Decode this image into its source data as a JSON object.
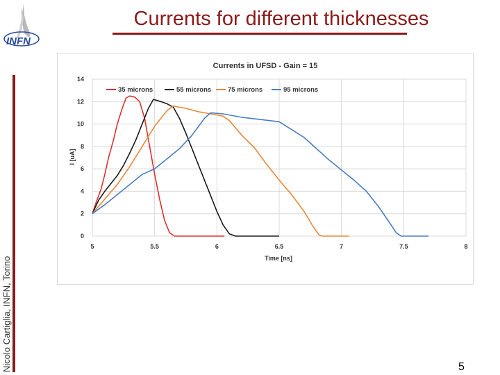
{
  "slide": {
    "title": "Currents for different thicknesses",
    "side_text": "Nicolo Cartiglia, INFN, Torino",
    "page_number": "5",
    "logo_text": "INFN",
    "accent_color": "#8b1a1a"
  },
  "chart_data": {
    "type": "line",
    "title": "Currents in UFSD - Gain = 15",
    "xlabel": "Time [ns]",
    "ylabel": "I [uA]",
    "xlim": [
      5,
      8
    ],
    "ylim": [
      0,
      14
    ],
    "xticks": [
      "5",
      "5.5",
      "6",
      "6.5",
      "7",
      "7.5",
      "8"
    ],
    "yticks": [
      "0",
      "2",
      "4",
      "6",
      "8",
      "10",
      "12",
      "14"
    ],
    "grid": true,
    "legend_position": "top",
    "series": [
      {
        "name": "35 microns",
        "color": "#e03030",
        "points": [
          [
            5.0,
            2.0
          ],
          [
            5.03,
            3.0
          ],
          [
            5.07,
            4.2
          ],
          [
            5.1,
            5.5
          ],
          [
            5.13,
            7.0
          ],
          [
            5.17,
            8.6
          ],
          [
            5.2,
            10.0
          ],
          [
            5.24,
            11.4
          ],
          [
            5.27,
            12.3
          ],
          [
            5.3,
            12.5
          ],
          [
            5.34,
            12.4
          ],
          [
            5.38,
            12.0
          ],
          [
            5.42,
            10.5
          ],
          [
            5.46,
            8.0
          ],
          [
            5.5,
            5.5
          ],
          [
            5.54,
            3.3
          ],
          [
            5.58,
            1.4
          ],
          [
            5.62,
            0.3
          ],
          [
            5.66,
            0.0
          ],
          [
            5.75,
            0.0
          ],
          [
            5.9,
            0.0
          ],
          [
            6.06,
            0.0
          ]
        ]
      },
      {
        "name": "55 microns",
        "color": "#1a1a1a",
        "points": [
          [
            5.0,
            2.0
          ],
          [
            5.05,
            3.2
          ],
          [
            5.1,
            4.0
          ],
          [
            5.15,
            4.7
          ],
          [
            5.2,
            5.4
          ],
          [
            5.25,
            6.3
          ],
          [
            5.3,
            7.4
          ],
          [
            5.35,
            8.6
          ],
          [
            5.4,
            10.0
          ],
          [
            5.45,
            11.4
          ],
          [
            5.49,
            12.2
          ],
          [
            5.55,
            12.0
          ],
          [
            5.6,
            11.8
          ],
          [
            5.65,
            11.5
          ],
          [
            5.7,
            10.5
          ],
          [
            5.75,
            9.2
          ],
          [
            5.8,
            7.8
          ],
          [
            5.85,
            6.4
          ],
          [
            5.9,
            5.0
          ],
          [
            5.95,
            3.6
          ],
          [
            6.0,
            2.2
          ],
          [
            6.05,
            1.0
          ],
          [
            6.1,
            0.2
          ],
          [
            6.15,
            0.0
          ],
          [
            6.3,
            0.0
          ],
          [
            6.5,
            0.0
          ]
        ]
      },
      {
        "name": "75 microns",
        "color": "#e8883a",
        "points": [
          [
            5.0,
            2.0
          ],
          [
            5.1,
            3.3
          ],
          [
            5.2,
            4.6
          ],
          [
            5.3,
            6.2
          ],
          [
            5.4,
            8.0
          ],
          [
            5.5,
            9.8
          ],
          [
            5.6,
            11.2
          ],
          [
            5.65,
            11.6
          ],
          [
            5.75,
            11.4
          ],
          [
            5.85,
            11.1
          ],
          [
            5.95,
            10.9
          ],
          [
            6.05,
            10.7
          ],
          [
            6.1,
            10.3
          ],
          [
            6.2,
            9.0
          ],
          [
            6.3,
            7.9
          ],
          [
            6.4,
            6.4
          ],
          [
            6.5,
            5.0
          ],
          [
            6.6,
            3.7
          ],
          [
            6.7,
            2.2
          ],
          [
            6.77,
            0.9
          ],
          [
            6.82,
            0.1
          ],
          [
            6.85,
            0.0
          ],
          [
            7.0,
            0.0
          ],
          [
            7.06,
            0.0
          ]
        ]
      },
      {
        "name": "95 microns",
        "color": "#4a7ec0",
        "points": [
          [
            5.0,
            2.0
          ],
          [
            5.1,
            2.8
          ],
          [
            5.2,
            3.7
          ],
          [
            5.3,
            4.6
          ],
          [
            5.4,
            5.5
          ],
          [
            5.5,
            6.0
          ],
          [
            5.6,
            6.9
          ],
          [
            5.7,
            7.8
          ],
          [
            5.8,
            9.0
          ],
          [
            5.9,
            10.5
          ],
          [
            5.95,
            11.0
          ],
          [
            6.05,
            10.9
          ],
          [
            6.2,
            10.6
          ],
          [
            6.35,
            10.4
          ],
          [
            6.5,
            10.2
          ],
          [
            6.6,
            9.5
          ],
          [
            6.7,
            8.8
          ],
          [
            6.8,
            7.8
          ],
          [
            6.9,
            6.8
          ],
          [
            7.0,
            5.9
          ],
          [
            7.1,
            5.0
          ],
          [
            7.2,
            4.0
          ],
          [
            7.3,
            2.6
          ],
          [
            7.38,
            1.3
          ],
          [
            7.44,
            0.3
          ],
          [
            7.48,
            0.0
          ],
          [
            7.6,
            0.0
          ],
          [
            7.7,
            0.0
          ]
        ]
      }
    ]
  }
}
